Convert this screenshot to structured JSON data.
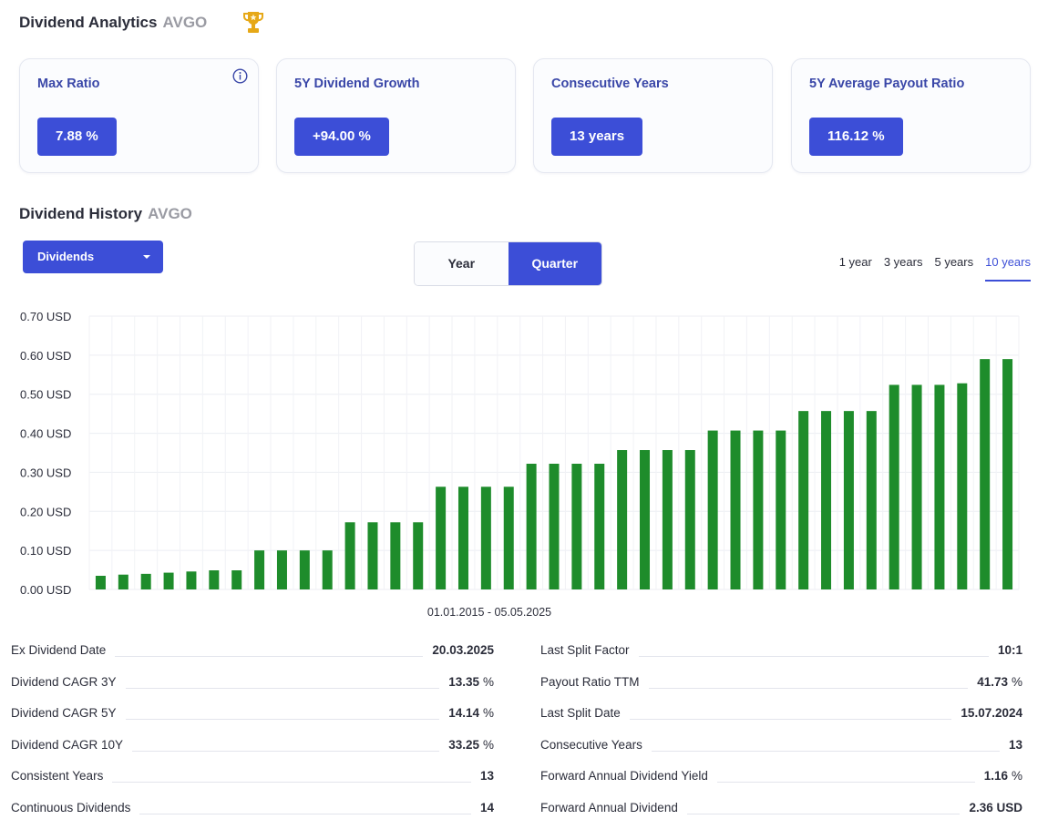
{
  "header": {
    "title": "Dividend Analytics",
    "ticker": "AVGO"
  },
  "cards": [
    {
      "label": "Max Ratio",
      "value": "7.88 %",
      "has_info": true
    },
    {
      "label": "5Y Dividend Growth",
      "value": "+94.00 %"
    },
    {
      "label": "Consecutive Years",
      "value": "13 years"
    },
    {
      "label": "5Y Average Payout Ratio",
      "value": "116.12 %"
    }
  ],
  "history": {
    "title": "Dividend History",
    "ticker": "AVGO",
    "dropdown_label": "Dividends",
    "toggle": {
      "year": "Year",
      "quarter": "Quarter",
      "selected": "Quarter"
    },
    "ranges": [
      "1 year",
      "3 years",
      "5 years",
      "10 years"
    ],
    "active_range": "10 years"
  },
  "chart_data": {
    "type": "bar",
    "xlabel": "01.01.2015 - 05.05.2025",
    "ylabel": "",
    "ylim": [
      0,
      0.7
    ],
    "yticks": [
      "0.00 USD",
      "0.10 USD",
      "0.20 USD",
      "0.30 USD",
      "0.40 USD",
      "0.50 USD",
      "0.60 USD",
      "0.70 USD"
    ],
    "grid": true,
    "bar_color": "#1e8c2b",
    "values": [
      0.035,
      0.038,
      0.04,
      0.043,
      0.046,
      0.049,
      0.049,
      0.1,
      0.1,
      0.1,
      0.1,
      0.172,
      0.172,
      0.172,
      0.172,
      0.263,
      0.263,
      0.263,
      0.263,
      0.322,
      0.322,
      0.322,
      0.322,
      0.357,
      0.357,
      0.357,
      0.357,
      0.407,
      0.407,
      0.407,
      0.407,
      0.457,
      0.457,
      0.457,
      0.457,
      0.524,
      0.524,
      0.524,
      0.528,
      0.59,
      0.59
    ]
  },
  "stats_left": [
    {
      "label": "Ex Dividend Date",
      "value": "20.03.2025",
      "unit": ""
    },
    {
      "label": "Dividend CAGR 3Y",
      "value": "13.35",
      "unit": "%"
    },
    {
      "label": "Dividend CAGR 5Y",
      "value": "14.14",
      "unit": "%"
    },
    {
      "label": "Dividend CAGR 10Y",
      "value": "33.25",
      "unit": "%"
    },
    {
      "label": "Consistent Years",
      "value": "13",
      "unit": ""
    },
    {
      "label": "Continuous Dividends",
      "value": "14",
      "unit": ""
    }
  ],
  "stats_right": [
    {
      "label": "Last Split Factor",
      "value": "10:1",
      "unit": ""
    },
    {
      "label": "Payout Ratio TTM",
      "value": "41.73",
      "unit": "%"
    },
    {
      "label": "Last Split Date",
      "value": "15.07.2024",
      "unit": ""
    },
    {
      "label": "Consecutive Years",
      "value": "13",
      "unit": ""
    },
    {
      "label": "Forward Annual Dividend Yield",
      "value": "1.16",
      "unit": "%"
    },
    {
      "label": "Forward Annual Dividend",
      "value": "2.36 USD",
      "unit": ""
    }
  ],
  "colors": {
    "accent": "#3c4ed7",
    "bar": "#1e8c2b",
    "card_label": "#3a47a8",
    "trophy": "#e6a817"
  },
  "icons": {
    "trophy": "trophy-icon",
    "info": "info-icon",
    "caret": "caret-down-icon"
  }
}
